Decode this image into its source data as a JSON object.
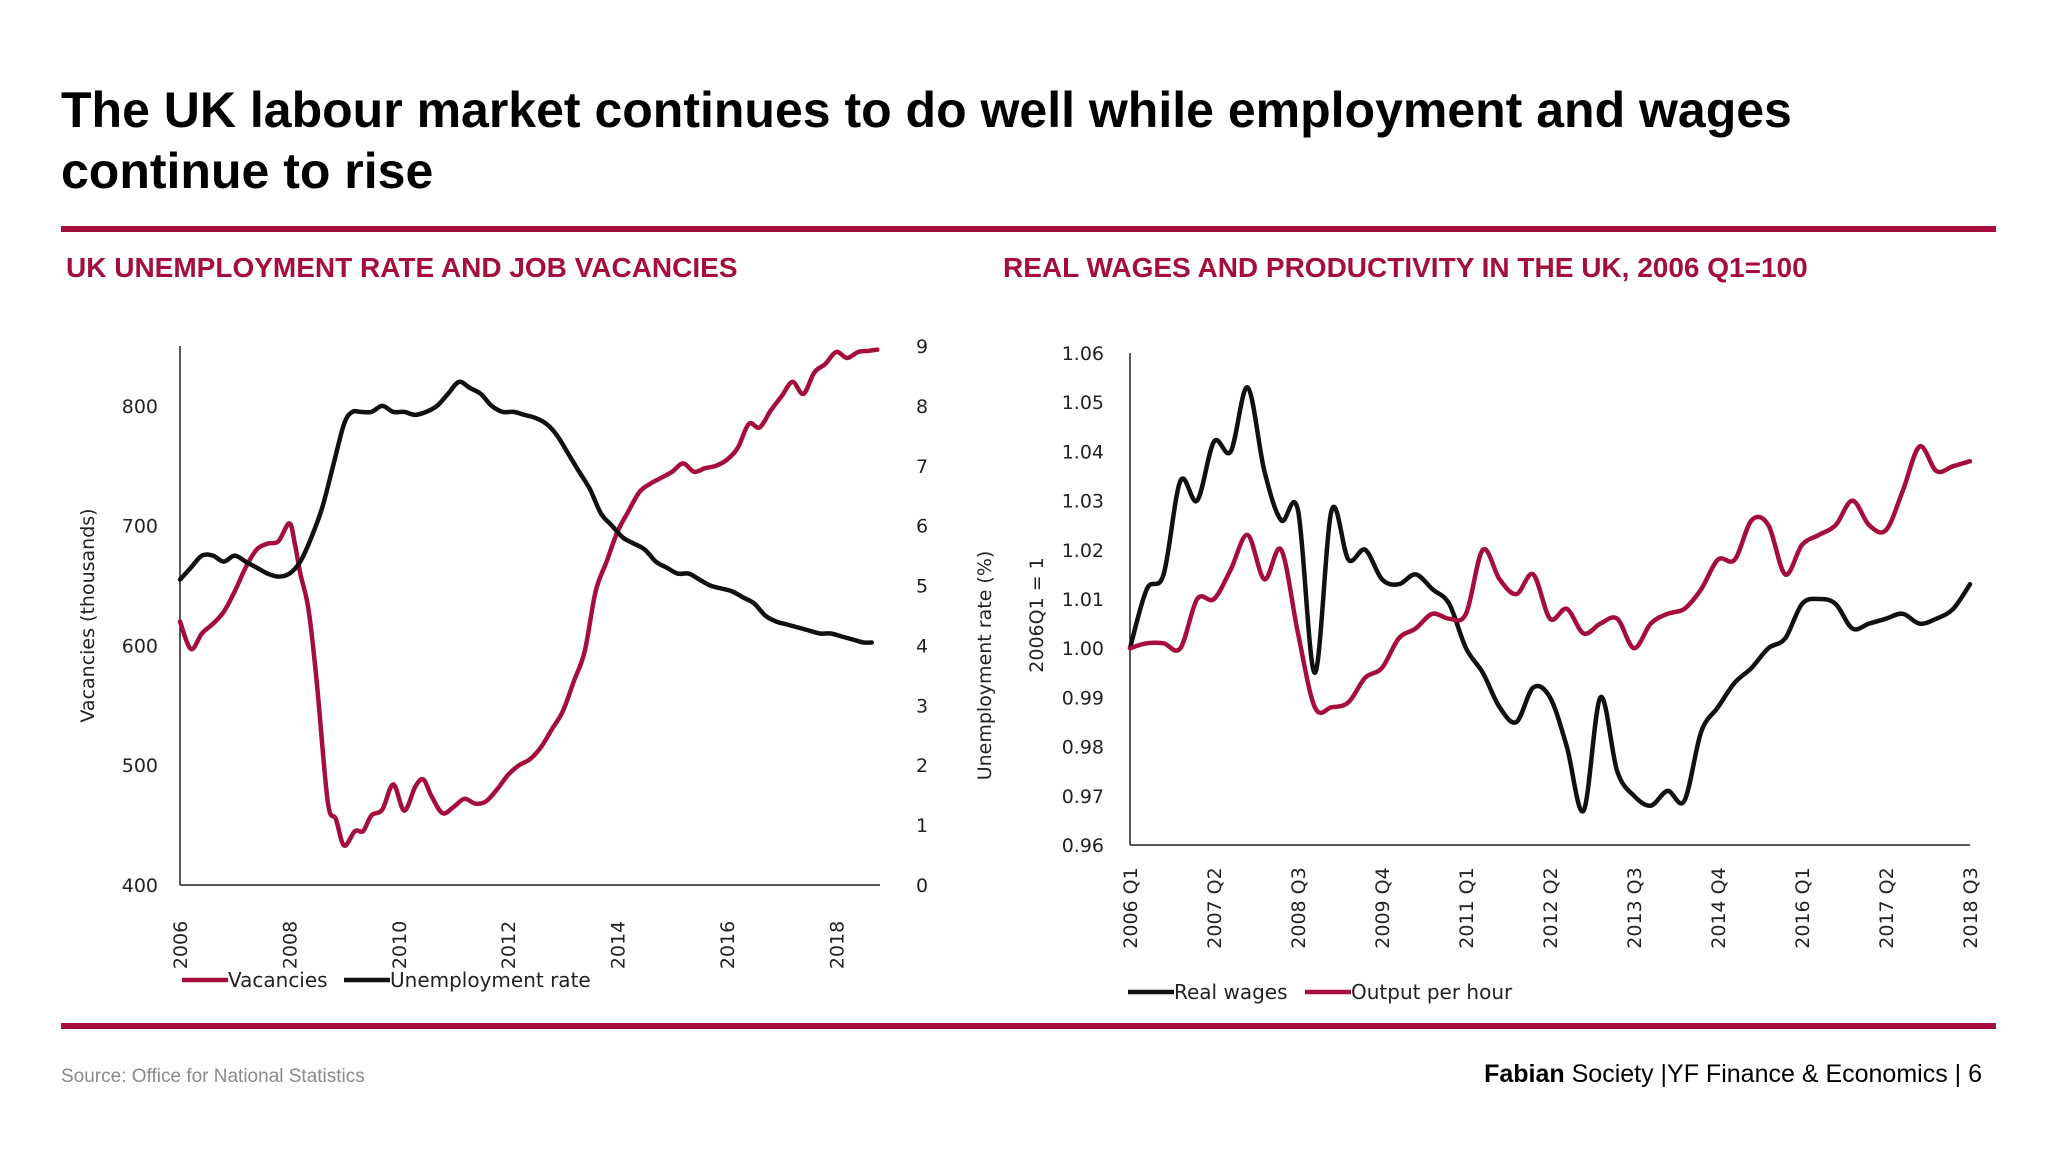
{
  "header": {
    "title": "The UK labour market continues to do well while employment and wages continue to rise"
  },
  "charts": {
    "left_title": "UK UNEMPLOYMENT RATE AND JOB VACANCIES",
    "right_title": "REAL WAGES AND PRODUCTIVITY IN THE UK, 2006 Q1=100"
  },
  "footer": {
    "source": "Source: Office for National Statistics",
    "org_bold": "Fabian",
    "org_rest": " Society |YF Finance & Economics | 6"
  },
  "colors": {
    "accent": "#a50e3a",
    "black_series": "#111111",
    "red_series": "#a50e3a"
  },
  "chart_data": [
    {
      "type": "line",
      "title": "UK UNEMPLOYMENT RATE AND JOB VACANCIES",
      "ylabel": "Vacancies (thousands)",
      "y2label": "Unemployment rate (%)",
      "xlim": [
        2006,
        2018.8
      ],
      "ylim": [
        400,
        850
      ],
      "y2lim": [
        0,
        9
      ],
      "xticks": [
        "2006",
        "2008",
        "2010",
        "2012",
        "2014",
        "2016",
        "2018"
      ],
      "yticks": [
        "400",
        "500",
        "600",
        "700",
        "800"
      ],
      "y2ticks": [
        "0",
        "1",
        "2",
        "3",
        "4",
        "5",
        "6",
        "7",
        "8",
        "9"
      ],
      "legend_position": "bottom-left",
      "series": [
        {
          "name": "Vacancies",
          "axis": "left",
          "color": "#a50e3a",
          "x": [
            2006.0,
            2006.2,
            2006.4,
            2006.6,
            2006.8,
            2007.0,
            2007.2,
            2007.4,
            2007.6,
            2007.8,
            2008.0,
            2008.1,
            2008.2,
            2008.35,
            2008.5,
            2008.7,
            2008.85,
            2009.0,
            2009.2,
            2009.35,
            2009.5,
            2009.7,
            2009.9,
            2010.1,
            2010.3,
            2010.45,
            2010.6,
            2010.8,
            2011.0,
            2011.2,
            2011.4,
            2011.6,
            2011.8,
            2012.0,
            2012.2,
            2012.4,
            2012.6,
            2012.8,
            2013.0,
            2013.2,
            2013.4,
            2013.6,
            2013.8,
            2014.0,
            2014.2,
            2014.4,
            2014.6,
            2014.8,
            2015.0,
            2015.2,
            2015.4,
            2015.6,
            2015.8,
            2016.0,
            2016.2,
            2016.4,
            2016.6,
            2016.8,
            2017.0,
            2017.2,
            2017.4,
            2017.6,
            2017.8,
            2018.0,
            2018.2,
            2018.4,
            2018.6,
            2018.75
          ],
          "values": [
            620,
            597,
            610,
            618,
            628,
            645,
            665,
            680,
            685,
            687,
            702,
            685,
            660,
            630,
            570,
            470,
            455,
            433,
            445,
            445,
            458,
            463,
            484,
            462,
            482,
            488,
            474,
            460,
            465,
            472,
            468,
            470,
            480,
            492,
            500,
            505,
            515,
            530,
            545,
            570,
            595,
            645,
            670,
            695,
            712,
            728,
            735,
            740,
            745,
            752,
            745,
            748,
            750,
            755,
            765,
            785,
            782,
            796,
            808,
            820,
            810,
            828,
            835,
            845,
            840,
            845,
            846,
            847
          ]
        },
        {
          "name": "Unemployment rate",
          "axis": "right",
          "color": "#111111",
          "x": [
            2006.0,
            2006.2,
            2006.4,
            2006.6,
            2006.8,
            2007.0,
            2007.2,
            2007.4,
            2007.6,
            2007.8,
            2008.0,
            2008.2,
            2008.4,
            2008.6,
            2008.8,
            2009.0,
            2009.15,
            2009.3,
            2009.5,
            2009.7,
            2009.9,
            2010.1,
            2010.3,
            2010.5,
            2010.7,
            2010.9,
            2011.1,
            2011.3,
            2011.5,
            2011.7,
            2011.9,
            2012.1,
            2012.3,
            2012.5,
            2012.7,
            2012.9,
            2013.1,
            2013.3,
            2013.5,
            2013.7,
            2013.9,
            2014.1,
            2014.3,
            2014.5,
            2014.7,
            2014.9,
            2015.1,
            2015.3,
            2015.5,
            2015.7,
            2015.9,
            2016.1,
            2016.3,
            2016.5,
            2016.7,
            2016.9,
            2017.1,
            2017.3,
            2017.5,
            2017.7,
            2017.9,
            2018.1,
            2018.3,
            2018.5,
            2018.65
          ],
          "values": [
            5.1,
            5.3,
            5.5,
            5.5,
            5.4,
            5.5,
            5.4,
            5.3,
            5.2,
            5.15,
            5.2,
            5.4,
            5.8,
            6.3,
            7.0,
            7.7,
            7.9,
            7.9,
            7.9,
            8.0,
            7.9,
            7.9,
            7.85,
            7.9,
            8.0,
            8.2,
            8.4,
            8.3,
            8.2,
            8.0,
            7.9,
            7.9,
            7.85,
            7.8,
            7.7,
            7.5,
            7.2,
            6.9,
            6.6,
            6.2,
            6.0,
            5.8,
            5.7,
            5.6,
            5.4,
            5.3,
            5.2,
            5.2,
            5.1,
            5.0,
            4.95,
            4.9,
            4.8,
            4.7,
            4.5,
            4.4,
            4.35,
            4.3,
            4.25,
            4.2,
            4.2,
            4.15,
            4.1,
            4.05,
            4.05
          ]
        }
      ]
    },
    {
      "type": "line",
      "title": "REAL WAGES AND PRODUCTIVITY IN THE UK, 2006 Q1=100",
      "ylabel": "2006Q1 = 1",
      "xlim": [
        0,
        50
      ],
      "ylim": [
        0.96,
        1.06
      ],
      "categories": [
        "2006 Q1",
        "2007 Q2",
        "2008 Q3",
        "2009 Q4",
        "2011 Q1",
        "2012 Q2",
        "2013 Q3",
        "2014 Q4",
        "2016 Q1",
        "2017 Q2",
        "2018 Q3"
      ],
      "category_positions": [
        0,
        5,
        10,
        15,
        20,
        25,
        30,
        35,
        40,
        45,
        50
      ],
      "yticks": [
        "0.96",
        "0.97",
        "0.98",
        "0.99",
        "1.00",
        "1.01",
        "1.02",
        "1.03",
        "1.04",
        "1.05",
        "1.06"
      ],
      "legend_position": "bottom-left",
      "series": [
        {
          "name": "Real wages",
          "color": "#111111",
          "x": [
            0,
            1,
            2,
            3,
            4,
            5,
            6,
            7,
            8,
            9,
            10,
            11,
            12,
            13,
            14,
            15,
            16,
            17,
            18,
            19,
            20,
            21,
            22,
            23,
            24,
            25,
            26,
            27,
            28,
            29,
            30,
            31,
            32,
            33,
            34,
            35,
            36,
            37,
            38,
            39,
            40,
            41,
            42,
            43,
            44,
            45,
            46,
            47,
            48,
            49,
            50
          ],
          "values": [
            1.0,
            1.012,
            1.015,
            1.034,
            1.03,
            1.042,
            1.04,
            1.053,
            1.036,
            1.026,
            1.028,
            0.995,
            1.028,
            1.018,
            1.02,
            1.014,
            1.013,
            1.015,
            1.012,
            1.009,
            1.0,
            0.995,
            0.988,
            0.985,
            0.992,
            0.99,
            0.98,
            0.967,
            0.99,
            0.975,
            0.97,
            0.968,
            0.971,
            0.969,
            0.983,
            0.988,
            0.993,
            0.996,
            1.0,
            1.002,
            1.009,
            1.01,
            1.009,
            1.004,
            1.005,
            1.006,
            1.007,
            1.005,
            1.006,
            1.008,
            1.013
          ]
        },
        {
          "name": "Output per hour",
          "color": "#a50e3a",
          "x": [
            0,
            1,
            2,
            3,
            4,
            5,
            6,
            7,
            8,
            9,
            10,
            11,
            12,
            13,
            14,
            15,
            16,
            17,
            18,
            19,
            20,
            21,
            22,
            23,
            24,
            25,
            26,
            27,
            28,
            29,
            30,
            31,
            32,
            33,
            34,
            35,
            36,
            37,
            38,
            39,
            40,
            41,
            42,
            43,
            44,
            45,
            46,
            47,
            48,
            49,
            50
          ],
          "values": [
            1.0,
            1.001,
            1.001,
            1.0,
            1.01,
            1.01,
            1.016,
            1.023,
            1.014,
            1.02,
            1.003,
            0.988,
            0.988,
            0.989,
            0.994,
            0.996,
            1.002,
            1.004,
            1.007,
            1.006,
            1.007,
            1.02,
            1.014,
            1.011,
            1.015,
            1.006,
            1.008,
            1.003,
            1.005,
            1.006,
            1.0,
            1.005,
            1.007,
            1.008,
            1.012,
            1.018,
            1.018,
            1.026,
            1.025,
            1.015,
            1.021,
            1.023,
            1.025,
            1.03,
            1.025,
            1.024,
            1.032,
            1.041,
            1.036,
            1.037,
            1.038
          ]
        }
      ]
    }
  ]
}
